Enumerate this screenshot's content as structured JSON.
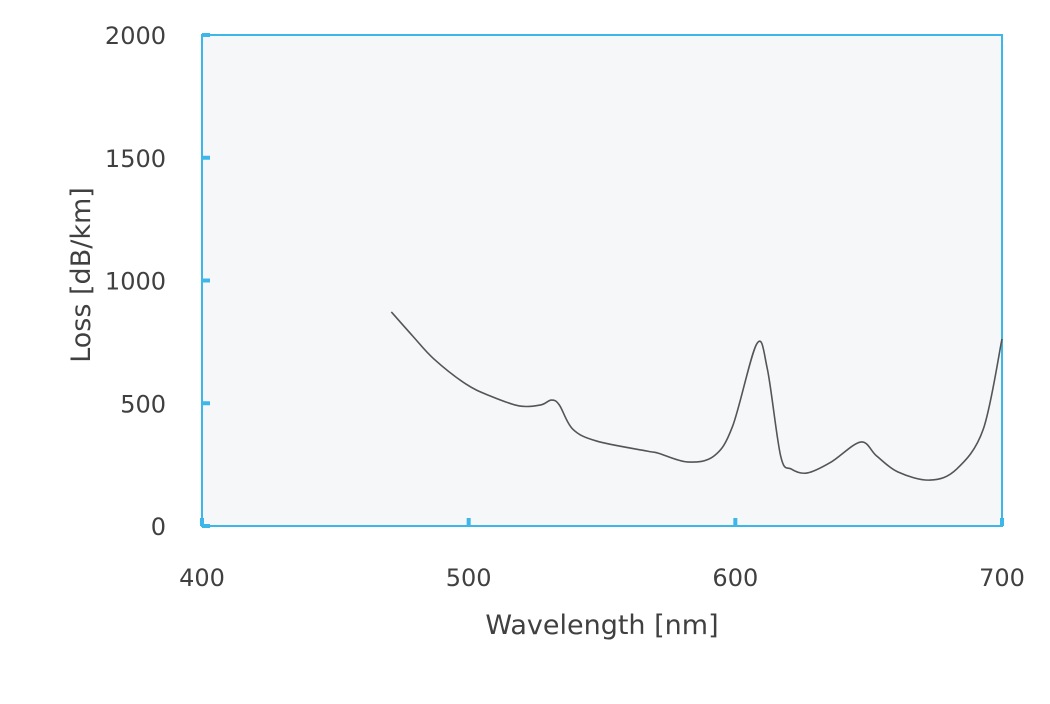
{
  "chart_data": {
    "type": "line",
    "title": "",
    "xlabel": "Wavelength [nm]",
    "ylabel": "Loss [dB/km]",
    "xlim": [
      400,
      700
    ],
    "ylim": [
      0,
      2000
    ],
    "xticks": [
      400,
      500,
      600,
      700
    ],
    "yticks": [
      0,
      500,
      1000,
      1500,
      2000
    ],
    "grid": false,
    "series": [
      {
        "name": "loss",
        "color": "#555555",
        "x": [
          471,
          479,
          487,
          499,
          508,
          519,
          527,
          531,
          534,
          539,
          548,
          567,
          571,
          582,
          592,
          599,
          608,
          612,
          617,
          621,
          627,
          636,
          647,
          653,
          661,
          673,
          683,
          693,
          700
        ],
        "y": [
          872,
          774,
          680,
          578,
          530,
          489,
          493,
          513,
          493,
          395,
          346,
          305,
          297,
          261,
          285,
          407,
          741,
          640,
          285,
          232,
          216,
          261,
          342,
          285,
          220,
          187,
          232,
          395,
          762
        ]
      }
    ],
    "colors": {
      "axis": "#3db7ea",
      "plot_bg": "#f5f7f9"
    }
  }
}
